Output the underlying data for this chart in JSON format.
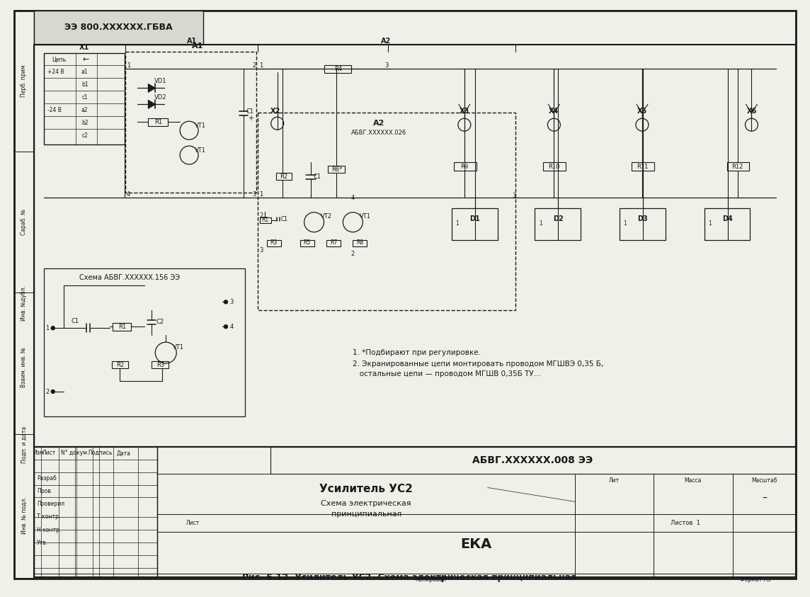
{
  "bg_color": "#f0efe8",
  "line_color": "#1a1a1a",
  "top_stamp_text": "ЭЭ 800.XXXXXX.ГБВА",
  "caption": "Рис. 6.12. Усилитель УС2. Схема электрическая принципиальная",
  "note1": "1. *Подбирают при регулировке.",
  "note2": "2. Экранированные цепи монтировать проводом МГШВЭ 0,35 Б,",
  "note3": "   остальные цепи — проводом МГШВ 0,35Б ТУ...",
  "sub_schema_label": "Схема АБВГ.XXXXXX.156 ЭЭ",
  "a1_label": "A1",
  "a2_label": "A2",
  "a2_sub": "АБВГ.XXXXXX.026",
  "device_name": "Усилитель УС2",
  "schema_type1": "Схема электрическая",
  "schema_type2": "принципиальная",
  "org_code": "ЕКА",
  "doc_number": "АБВГ.XXXXXX.008 ЭЭ",
  "lut_label": "Лит",
  "mass_label": "Масса",
  "scale_label": "Масштаб",
  "izm_label": "Изм",
  "list_label2": "Лист",
  "doc_label": "N° докум.",
  "sign_label": "Подпись",
  "date_label": "Дата",
  "razrab_label": "Разраб",
  "prob_label": "Пров.",
  "t_kontr_label": "Т контр.",
  "n_kontr_label": "Н контр.",
  "umb_label": "Утв.",
  "kopiroval_label": "Копировал",
  "format_label": "Формат А3",
  "sheets_label": "Листов  1",
  "sheet_label": "Лист",
  "dash_val": "–"
}
